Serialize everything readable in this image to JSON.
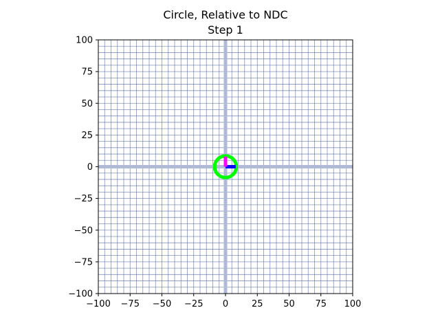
{
  "chart_data": {
    "type": "line",
    "title": "Circle, Relative to NDC",
    "subtitle": "Step 1",
    "xlabel": "",
    "ylabel": "",
    "xlim": [
      -100,
      100
    ],
    "ylim": [
      -100,
      100
    ],
    "xticks": [
      -100,
      -75,
      -50,
      -25,
      0,
      25,
      50,
      75,
      100
    ],
    "yticks": [
      -100,
      -75,
      -50,
      -25,
      0,
      25,
      50,
      75,
      100
    ],
    "xtick_labels": [
      "−100",
      "−75",
      "−50",
      "−25",
      "0",
      "25",
      "50",
      "75",
      "100"
    ],
    "ytick_labels": [
      "−100",
      "−75",
      "−50",
      "−25",
      "0",
      "25",
      "50",
      "75",
      "100"
    ],
    "grid": true,
    "grid_spacing": 5,
    "grid_color": "#5b6fa8",
    "axis_line_color": "#b0bad6",
    "aspect": "equal",
    "shapes": {
      "circle": {
        "center": [
          0,
          0
        ],
        "radius": 8.5,
        "color": "#00ff00"
      },
      "x_basis": {
        "from": [
          0,
          0
        ],
        "to": [
          8,
          0
        ],
        "color": "#0000ff"
      },
      "y_basis": {
        "from": [
          0,
          0
        ],
        "to": [
          0,
          8
        ],
        "color": "#ff00ff"
      }
    }
  }
}
